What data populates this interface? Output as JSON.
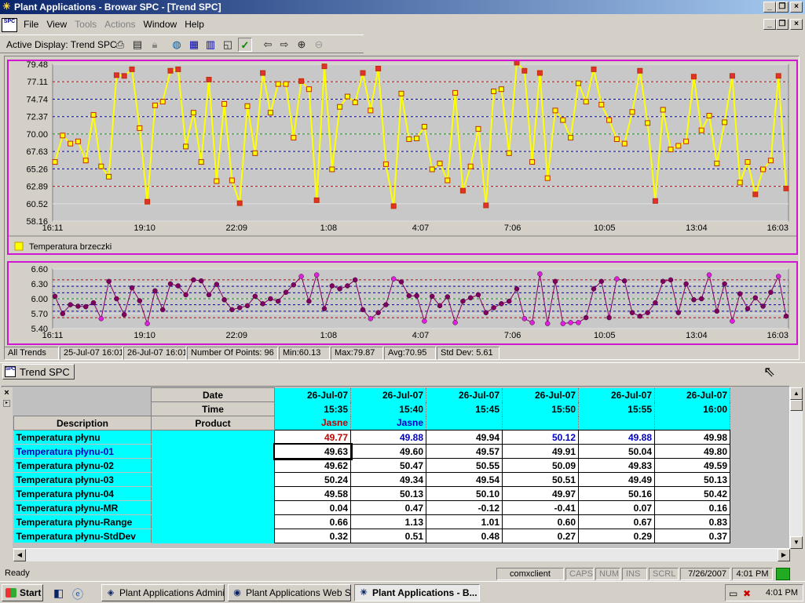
{
  "window": {
    "title": "Plant Applications - Browar SPC - [Trend SPC]",
    "min_label": "_",
    "max_label": "❐",
    "close_label": "×"
  },
  "menu": [
    "File",
    "View",
    "Tools",
    "Actions",
    "Window",
    "Help"
  ],
  "menu_disabled": [
    "Tools",
    "Actions"
  ],
  "menu_icon": "SPC",
  "toolbar": {
    "label": "Active Display: Trend SPC",
    "icons": [
      "print-icon",
      "preview-icon",
      "lock-icon",
      "globe-icon",
      "chart-all-icon",
      "chart-123-icon",
      "chart-icon",
      "check-icon",
      "back-icon",
      "forward-icon",
      "zoom-in-icon",
      "zoom-out-icon"
    ]
  },
  "chart_data": [
    {
      "type": "line",
      "y_ticks": [
        "79.48",
        "77.11",
        "74.74",
        "72.37",
        "70.00",
        "67.63",
        "65.26",
        "62.89",
        "60.52",
        "58.16"
      ],
      "x_ticks": [
        "16:11",
        "19:10",
        "22:09",
        "1:08",
        "4:07",
        "7:06",
        "10:05",
        "13:04",
        "16:03"
      ],
      "ylim": [
        58.16,
        79.48
      ],
      "center_line": 70.0,
      "limit_lines_red": [
        77.11,
        62.89
      ],
      "limit_lines_blue": [
        74.74,
        72.37,
        67.63,
        65.26
      ],
      "grid": true,
      "legend_placement": "bottom-left",
      "series": [
        {
          "name": "Temperatura brzeczki",
          "color": "#ffff00",
          "values": [
            66.2,
            69.8,
            68.7,
            69.0,
            66.4,
            72.6,
            65.6,
            64.2,
            78.0,
            77.9,
            78.8,
            70.8,
            60.8,
            73.9,
            74.4,
            78.6,
            78.8,
            68.3,
            72.9,
            66.2,
            77.4,
            63.6,
            74.1,
            63.7,
            60.6,
            73.8,
            67.4,
            78.3,
            72.9,
            76.8,
            76.8,
            69.5,
            77.2,
            76.1,
            61.0,
            79.2,
            65.2,
            73.7,
            75.1,
            74.3,
            78.3,
            73.2,
            78.9,
            65.9,
            60.2,
            75.5,
            69.3,
            69.4,
            71.0,
            65.2,
            66.0,
            63.7,
            75.6,
            62.3,
            65.6,
            70.7,
            60.3,
            75.8,
            76.1,
            67.4,
            79.7,
            78.6,
            66.2,
            78.3,
            64.0,
            73.2,
            71.9,
            69.5,
            76.9,
            74.4,
            78.8,
            74.0,
            71.9,
            69.3,
            68.7,
            73.0,
            78.6,
            71.5,
            60.9,
            73.3,
            67.9,
            68.4,
            69.0,
            77.8,
            70.5,
            72.5,
            66.0,
            71.6,
            77.9,
            63.4,
            66.2,
            61.8,
            65.2,
            66.4,
            77.9,
            62.6
          ]
        }
      ]
    },
    {
      "type": "line",
      "y_ticks": [
        "6.60",
        "6.30",
        "6.00",
        "5.70",
        "5.40"
      ],
      "x_ticks": [
        "16:11",
        "19:10",
        "22:09",
        "1:08",
        "4:07",
        "7:06",
        "10:05",
        "13:04",
        "16:03"
      ],
      "ylim": [
        5.4,
        6.6
      ],
      "center_line": 6.0,
      "limit_lines_red": [
        6.38,
        5.62
      ],
      "limit_lines_blue": [
        6.25,
        6.12,
        5.88,
        5.75
      ],
      "grid": true,
      "series": [
        {
          "name": "",
          "color": "#800060",
          "values": [
            6.05,
            5.7,
            5.88,
            5.85,
            5.84,
            5.92,
            5.6,
            6.35,
            6.0,
            5.68,
            6.22,
            5.96,
            5.5,
            6.16,
            5.78,
            6.3,
            6.26,
            6.08,
            6.38,
            6.36,
            6.08,
            6.29,
            5.98,
            5.78,
            5.82,
            5.86,
            6.05,
            5.9,
            6.0,
            5.95,
            6.13,
            6.28,
            6.45,
            5.95,
            6.48,
            5.8,
            6.26,
            6.2,
            6.26,
            6.38,
            5.78,
            5.6,
            5.72,
            5.88,
            6.4,
            6.34,
            6.06,
            6.06,
            5.55,
            6.05,
            5.86,
            6.04,
            5.52,
            5.95,
            6.02,
            6.08,
            5.72,
            5.82,
            5.9,
            5.95,
            6.2,
            5.6,
            5.52,
            6.5,
            5.5,
            6.35,
            5.5,
            5.52,
            5.52,
            5.62,
            6.2,
            6.35,
            5.62,
            6.4,
            6.36,
            5.72,
            5.65,
            5.72,
            5.92,
            6.35,
            6.38,
            5.72,
            6.3,
            5.98,
            6.0,
            6.48,
            5.75,
            6.3,
            5.55,
            6.1,
            5.8,
            6.02,
            5.85,
            6.13,
            6.45,
            5.65
          ]
        }
      ]
    }
  ],
  "status_strip": [
    "All Trends",
    "25-Jul-07 16:01",
    "26-Jul-07 16:01",
    "Number Of Points: 96",
    "Min:60.13",
    "Max:79.87",
    "Avg:70.95",
    "Std Dev: 5.61"
  ],
  "tab": {
    "label": "Trend SPC",
    "icon": "SPC"
  },
  "grid": {
    "close_x": "×",
    "hdr_date": "Date",
    "hdr_time": "Time",
    "hdr_desc": "Description",
    "hdr_product": "Product",
    "columns": [
      {
        "date": "26-Jul-07",
        "time": "15:35",
        "product": "Jasne",
        "product_color": "#c00000"
      },
      {
        "date": "26-Jul-07",
        "time": "15:40",
        "product": "Jasne",
        "product_color": "#0000c0"
      },
      {
        "date": "26-Jul-07",
        "time": "15:45",
        "product": "",
        "product_color": "#000000"
      },
      {
        "date": "26-Jul-07",
        "time": "15:50",
        "product": "",
        "product_color": "#000000"
      },
      {
        "date": "26-Jul-07",
        "time": "15:55",
        "product": "",
        "product_color": "#000000"
      },
      {
        "date": "26-Jul-07",
        "time": "16:00",
        "product": "",
        "product_color": "#000000"
      }
    ],
    "rows": [
      {
        "label": "Temperatura płynu",
        "label_color": "#000000",
        "values": [
          "49.77",
          "49.88",
          "49.94",
          "50.12",
          "49.88",
          "49.98"
        ],
        "value_colors": [
          "#c00000",
          "#0000c0",
          "#000000",
          "#0000c0",
          "#0000c0",
          "#000000"
        ]
      },
      {
        "label": "Temperatura płynu-01",
        "label_color": "#0000c0",
        "values": [
          "49.63",
          "49.60",
          "49.57",
          "49.91",
          "50.04",
          "49.80"
        ]
      },
      {
        "label": "Temperatura płynu-02",
        "label_color": "#000000",
        "values": [
          "49.62",
          "50.47",
          "50.55",
          "50.09",
          "49.83",
          "49.59"
        ]
      },
      {
        "label": "Temperatura płynu-03",
        "label_color": "#000000",
        "values": [
          "50.24",
          "49.34",
          "49.54",
          "50.51",
          "49.49",
          "50.13"
        ]
      },
      {
        "label": "Temperatura płynu-04",
        "label_color": "#000000",
        "values": [
          "49.58",
          "50.13",
          "50.10",
          "49.97",
          "50.16",
          "50.42"
        ]
      },
      {
        "label": "Temperatura płynu-MR",
        "label_color": "#000000",
        "values": [
          "0.04",
          "0.47",
          "-0.12",
          "-0.41",
          "0.07",
          "0.16"
        ]
      },
      {
        "label": "Temperatura płynu-Range",
        "label_color": "#000000",
        "values": [
          "0.66",
          "1.13",
          "1.01",
          "0.60",
          "0.67",
          "0.83"
        ]
      },
      {
        "label": "Temperatura płynu-StdDev",
        "label_color": "#000000",
        "values": [
          "0.32",
          "0.51",
          "0.48",
          "0.27",
          "0.29",
          "0.37"
        ]
      }
    ]
  },
  "statusbar": {
    "text": "Ready",
    "host": "comxclient",
    "caps": "CAPS",
    "num": "NUM",
    "ins": "INS",
    "scrl": "SCRL",
    "date": "7/26/2007",
    "time": "4:01 PM"
  },
  "taskbar": {
    "start": "Start",
    "tasks": [
      "Plant Applications Admini...",
      "Plant Applications Web S...",
      "Plant Applications - B..."
    ],
    "clock": "4:01 PM"
  }
}
